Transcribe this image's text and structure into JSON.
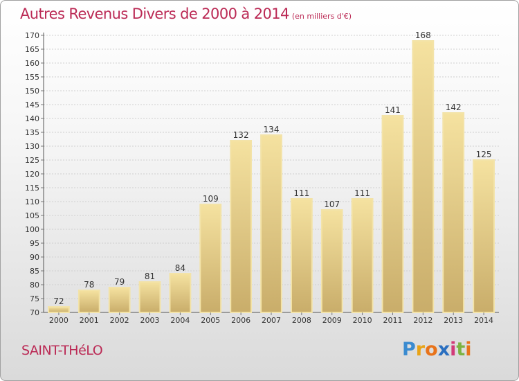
{
  "title": {
    "main": "Autres Revenus Divers de 2000 à 2014",
    "unit": "(en milliers d'€)"
  },
  "location": "SAINT-THéLO",
  "logo": {
    "letters": [
      "P",
      "r",
      "o",
      "x",
      "i",
      "t",
      "i"
    ],
    "colors": [
      "#3a8bd0",
      "#e8a317",
      "#e8731a",
      "#2a6fc0",
      "#d23a78",
      "#7cb342",
      "#e8731a"
    ]
  },
  "colors": {
    "accent": "#bb2a55",
    "bar_fill": "#e6cf8a",
    "bar_stroke": "#f3e3a8"
  },
  "chart_data": {
    "type": "bar",
    "categories": [
      "2000",
      "2001",
      "2002",
      "2003",
      "2004",
      "2005",
      "2006",
      "2007",
      "2008",
      "2009",
      "2010",
      "2011",
      "2012",
      "2013",
      "2014"
    ],
    "values": [
      72,
      78,
      79,
      81,
      84,
      109,
      132,
      134,
      111,
      107,
      111,
      141,
      168,
      142,
      125
    ],
    "yticks": [
      70,
      75,
      80,
      85,
      90,
      95,
      100,
      105,
      110,
      115,
      120,
      125,
      130,
      135,
      140,
      145,
      150,
      155,
      160,
      165,
      170
    ],
    "ylim": [
      70,
      170
    ],
    "grid": true,
    "data_labels": true
  }
}
